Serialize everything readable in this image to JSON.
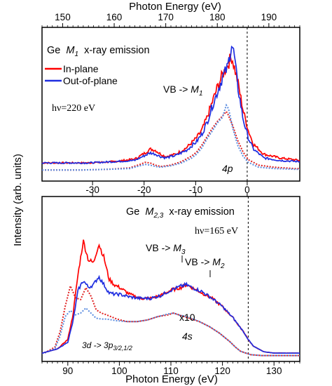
{
  "colors": {
    "in_plane": "#ff0000",
    "out_of_plane": "#1f2ee0",
    "in_plane_dotted": "#e02020",
    "out_of_plane_dotted": "#5a8ce0",
    "axis": "#000000"
  },
  "figure": {
    "ylabel": "Intensity (arb. units)"
  },
  "chart_data": [
    {
      "type": "line",
      "panel": "top",
      "title": "Ge M1 x-ray emission",
      "title_element": "Ge",
      "title_sym": "M",
      "title_sub": "1",
      "title_rest": "x-ray emission",
      "excitation": "hν=220 eV",
      "xlabel": "Photon Energy (eV)",
      "x_ticks": [
        "150",
        "160",
        "170",
        "180",
        "190"
      ],
      "xlim": [
        146,
        196
      ],
      "secondary_x_ticks": [
        "-30",
        "-20",
        "-10",
        "0"
      ],
      "secondary_xlabel_note": "relative energy scale (E - EF)",
      "fermi_level_x": 185.8,
      "legend": [
        "In-plane",
        "Out-of-plane"
      ],
      "annotations": {
        "vb": "VB -> ",
        "vb_sym": "M",
        "vb_sub": "1",
        "orbital": "4p"
      },
      "series": [
        {
          "name": "In-plane",
          "style": "solid",
          "x": [
            146,
            150,
            155,
            160,
            164,
            166,
            167,
            168,
            169,
            170,
            172,
            174,
            176,
            177,
            178,
            179,
            180,
            181,
            182,
            182.8,
            183.2,
            184,
            185,
            186,
            187,
            189,
            192,
            196
          ],
          "y": [
            0.1,
            0.1,
            0.1,
            0.11,
            0.13,
            0.18,
            0.21,
            0.2,
            0.17,
            0.15,
            0.17,
            0.22,
            0.3,
            0.36,
            0.46,
            0.58,
            0.7,
            0.8,
            0.88,
            0.95,
            0.88,
            0.74,
            0.52,
            0.36,
            0.25,
            0.17,
            0.14,
            0.12
          ]
        },
        {
          "name": "Out-of-plane",
          "style": "solid",
          "x": [
            146,
            150,
            155,
            160,
            164,
            166,
            167,
            168,
            169,
            170,
            172,
            174,
            176,
            177,
            178,
            179,
            180,
            181,
            182,
            182.8,
            183.3,
            184,
            185,
            186,
            187,
            189,
            192,
            196
          ],
          "y": [
            0.1,
            0.1,
            0.1,
            0.11,
            0.12,
            0.16,
            0.18,
            0.17,
            0.15,
            0.14,
            0.16,
            0.2,
            0.27,
            0.33,
            0.42,
            0.55,
            0.66,
            0.78,
            0.86,
            1.05,
            0.95,
            0.7,
            0.45,
            0.3,
            0.21,
            0.14,
            0.12,
            0.11
          ]
        }
      ]
    },
    {
      "type": "line",
      "panel": "bottom",
      "title": "Ge M2,3 x-ray emission",
      "title_element": "Ge",
      "title_sym": "M",
      "title_sub": "2,3",
      "title_rest": "x-ray emission",
      "excitation": "hν=165 eV",
      "xlabel": "Photon Energy (eV)",
      "x_ticks": [
        "90",
        "100",
        "110",
        "120",
        "130"
      ],
      "xlim": [
        85,
        135
      ],
      "secondary_x_ticks": [
        "-30",
        "-20",
        "-10",
        "0"
      ],
      "fermi_level_x": 125,
      "annotations": {
        "vb3": "VB -> ",
        "vb3_sym": "M",
        "vb3_sub": "3",
        "vb2": "VB -> ",
        "vb2_sym": "M",
        "vb2_sub": "2",
        "x10": "x10",
        "orbital": "4s",
        "core": "3d -> 3p",
        "core_sub": "3/2,1/2"
      },
      "series": [
        {
          "name": "In-plane",
          "style": "solid",
          "x": [
            85,
            88,
            90,
            91,
            92,
            93,
            94,
            95,
            96,
            97,
            98,
            99,
            100,
            102,
            104,
            106,
            108,
            110,
            112,
            113,
            114,
            116,
            118,
            120,
            122,
            124,
            125,
            126,
            128,
            130,
            135
          ],
          "y": [
            0.02,
            0.05,
            0.12,
            0.3,
            0.6,
            0.84,
            0.7,
            0.68,
            0.82,
            0.72,
            0.56,
            0.52,
            0.5,
            0.45,
            0.42,
            0.42,
            0.44,
            0.48,
            0.5,
            0.52,
            0.5,
            0.46,
            0.42,
            0.36,
            0.28,
            0.18,
            0.12,
            0.07,
            0.03,
            0.02,
            0.02
          ]
        },
        {
          "name": "Out-of-plane",
          "style": "solid",
          "x": [
            85,
            88,
            90,
            91,
            92,
            93,
            94,
            95,
            96,
            97,
            98,
            99,
            100,
            102,
            104,
            106,
            108,
            110,
            112,
            113,
            114,
            116,
            118,
            120,
            122,
            124,
            125,
            126,
            128,
            130,
            135
          ],
          "y": [
            0.02,
            0.05,
            0.1,
            0.25,
            0.48,
            0.55,
            0.5,
            0.52,
            0.58,
            0.52,
            0.46,
            0.45,
            0.45,
            0.43,
            0.42,
            0.42,
            0.44,
            0.48,
            0.51,
            0.52,
            0.5,
            0.47,
            0.42,
            0.36,
            0.28,
            0.18,
            0.12,
            0.07,
            0.03,
            0.02,
            0.02
          ]
        }
      ]
    }
  ]
}
